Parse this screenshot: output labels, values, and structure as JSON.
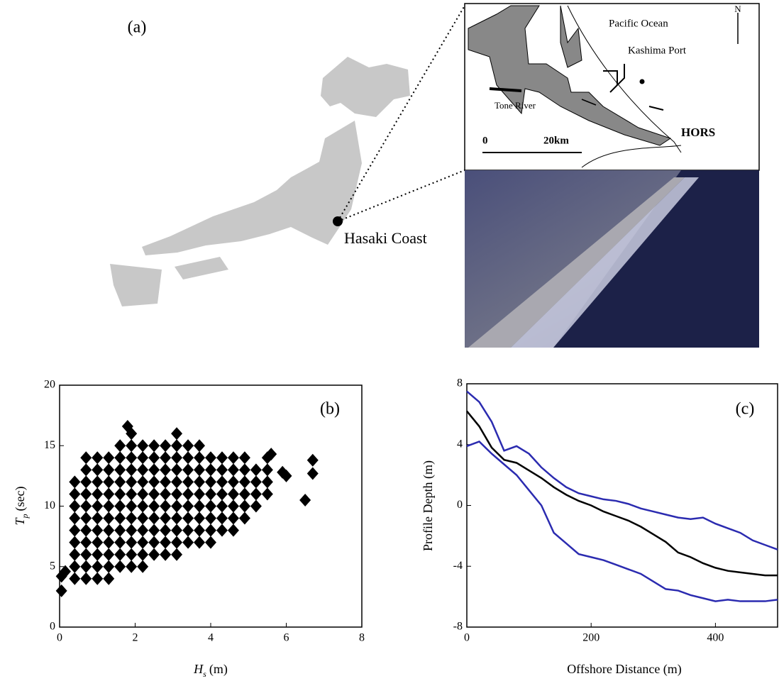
{
  "map": {
    "panel_label": "(a)",
    "site": "Hasaki Coast",
    "ocean": "Pacific Ocean",
    "port": "Kashima Port",
    "river": "Tone River",
    "station": "HORS",
    "scale_start": "0",
    "scale_end": "20km",
    "north": "N"
  },
  "chart_data": [
    {
      "type": "scatter",
      "annotation": "(b)",
      "ylabel": "T",
      "ylabel_subscript": "p",
      "ylabel_unit": "(sec)",
      "xlabel": "H",
      "xlabel_subscript": "s",
      "xlabel_unit": "(m)",
      "color": "#000000",
      "xlim": [
        0,
        8
      ],
      "ylim": [
        0,
        20
      ],
      "xticks": [
        0,
        2,
        4,
        6,
        8
      ],
      "yticks": [
        0,
        5,
        10,
        15,
        20
      ],
      "x": [
        0.4,
        0.4,
        0.4,
        0.4,
        0.4,
        0.4,
        0.4,
        0.4,
        0.4,
        0.7,
        0.7,
        0.7,
        0.7,
        0.7,
        0.7,
        0.7,
        0.7,
        0.7,
        0.7,
        0.7,
        1,
        1,
        1,
        1,
        1,
        1,
        1,
        1,
        1,
        1,
        1,
        1.3,
        1.3,
        1.3,
        1.3,
        1.3,
        1.3,
        1.3,
        1.3,
        1.3,
        1.3,
        1.3,
        1.6,
        1.6,
        1.6,
        1.6,
        1.6,
        1.6,
        1.6,
        1.6,
        1.6,
        1.6,
        1.6,
        1.9,
        1.9,
        1.9,
        1.9,
        1.9,
        1.9,
        1.9,
        1.9,
        1.9,
        1.9,
        1.9,
        1.9,
        2.2,
        2.2,
        2.2,
        2.2,
        2.2,
        2.2,
        2.2,
        2.2,
        2.2,
        2.2,
        2.2,
        2.5,
        2.5,
        2.5,
        2.5,
        2.5,
        2.5,
        2.5,
        2.5,
        2.5,
        2.5,
        2.8,
        2.8,
        2.8,
        2.8,
        2.8,
        2.8,
        2.8,
        2.8,
        2.8,
        2.8,
        3.1,
        3.1,
        3.1,
        3.1,
        3.1,
        3.1,
        3.1,
        3.1,
        3.1,
        3.1,
        3.1,
        3.4,
        3.4,
        3.4,
        3.4,
        3.4,
        3.4,
        3.4,
        3.4,
        3.4,
        3.7,
        3.7,
        3.7,
        3.7,
        3.7,
        3.7,
        3.7,
        3.7,
        3.7,
        4,
        4,
        4,
        4,
        4,
        4,
        4,
        4,
        4.3,
        4.3,
        4.3,
        4.3,
        4.3,
        4.3,
        4.3,
        4.6,
        4.6,
        4.6,
        4.6,
        4.6,
        4.6,
        4.6,
        4.9,
        4.9,
        4.9,
        4.9,
        4.9,
        4.9,
        5.2,
        5.2,
        5.2,
        5.2,
        5.5,
        5.5,
        5.5,
        5.5,
        0.05,
        0.05,
        0.15,
        1.8,
        5.6,
        5.9,
        6,
        6.5,
        6.7,
        6.7
      ],
      "values": [
        4,
        5,
        6,
        7,
        8,
        9,
        10,
        11,
        12,
        4,
        5,
        6,
        7,
        8,
        9,
        10,
        11,
        12,
        13,
        14,
        4,
        5,
        6,
        7,
        8,
        9,
        10,
        11,
        12,
        13,
        14,
        4,
        5,
        6,
        7,
        8,
        9,
        10,
        11,
        12,
        13,
        14,
        5,
        6,
        7,
        8,
        9,
        10,
        11,
        12,
        13,
        14,
        15,
        5,
        6,
        7,
        8,
        9,
        10,
        11,
        12,
        13,
        14,
        15,
        16,
        5,
        6,
        7,
        8,
        9,
        10,
        11,
        12,
        13,
        14,
        15,
        6,
        7,
        8,
        9,
        10,
        11,
        12,
        13,
        14,
        15,
        6,
        7,
        8,
        9,
        10,
        11,
        12,
        13,
        14,
        15,
        6,
        7,
        8,
        9,
        10,
        11,
        12,
        13,
        14,
        15,
        16,
        7,
        8,
        9,
        10,
        11,
        12,
        13,
        14,
        15,
        7,
        8,
        9,
        10,
        11,
        12,
        13,
        14,
        15,
        7,
        8,
        9,
        10,
        11,
        12,
        13,
        14,
        8,
        9,
        10,
        11,
        12,
        13,
        14,
        8,
        9,
        10,
        11,
        12,
        13,
        14,
        9,
        10,
        11,
        12,
        13,
        14,
        10,
        11,
        12,
        13,
        11,
        12,
        13,
        14,
        3,
        4.2,
        4.6,
        16.6,
        14.3,
        12.8,
        12.5,
        10.5,
        13.8,
        12.7
      ]
    },
    {
      "type": "line",
      "annotation": "(c)",
      "xlabel": "Offshore Distance (m)",
      "ylabel": "Profile Depth (m)",
      "xlim": [
        0,
        500
      ],
      "ylim": [
        -8,
        8
      ],
      "xticks": [
        0,
        200,
        400
      ],
      "yticks": [
        -8,
        -4,
        0,
        4,
        8
      ],
      "x": [
        0,
        20,
        40,
        60,
        80,
        100,
        120,
        140,
        160,
        180,
        200,
        220,
        240,
        260,
        280,
        300,
        320,
        340,
        360,
        380,
        400,
        420,
        440,
        460,
        480,
        500
      ],
      "series": [
        {
          "color": "#2b2bb0",
          "values": [
            7.5,
            6.8,
            5.5,
            3.6,
            3.9,
            3.4,
            2.5,
            1.8,
            1.2,
            0.8,
            0.6,
            0.4,
            0.3,
            0.1,
            -0.2,
            -0.4,
            -0.6,
            -0.8,
            -0.9,
            -0.8,
            -1.2,
            -1.5,
            -1.8,
            -2.3,
            -2.6,
            -2.9
          ]
        },
        {
          "color": "#000000",
          "values": [
            6.2,
            5.2,
            3.8,
            3,
            2.8,
            2.3,
            1.8,
            1.2,
            0.7,
            0.3,
            0,
            -0.4,
            -0.7,
            -1,
            -1.4,
            -1.9,
            -2.4,
            -3.1,
            -3.4,
            -3.8,
            -4.1,
            -4.3,
            -4.4,
            -4.5,
            -4.6,
            -4.6
          ]
        },
        {
          "color": "#2b2bb0",
          "values": [
            3.9,
            4.2,
            3.4,
            2.7,
            2,
            1,
            0,
            -1.8,
            -2.5,
            -3.2,
            -3.4,
            -3.6,
            -3.9,
            -4.2,
            -4.5,
            -5,
            -5.5,
            -5.6,
            -5.9,
            -6.1,
            -6.3,
            -6.2,
            -6.3,
            -6.3,
            -6.3,
            -6.2
          ]
        }
      ]
    }
  ]
}
